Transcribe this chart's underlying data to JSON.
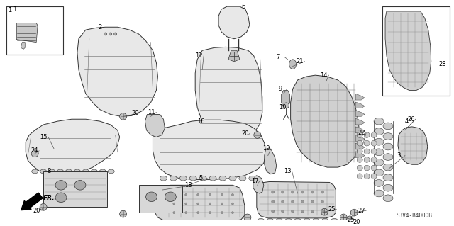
{
  "bg_color": "#ffffff",
  "diagram_code": "S3V4-B4000B",
  "fig_width": 6.4,
  "fig_height": 3.19,
  "dpi": 100,
  "line_color": "#333333",
  "fill_color": "#e8e8e8",
  "fill_dark": "#c8c8c8",
  "text_color": "#000000",
  "font_size": 6.0,
  "code_font_size": 5.5
}
